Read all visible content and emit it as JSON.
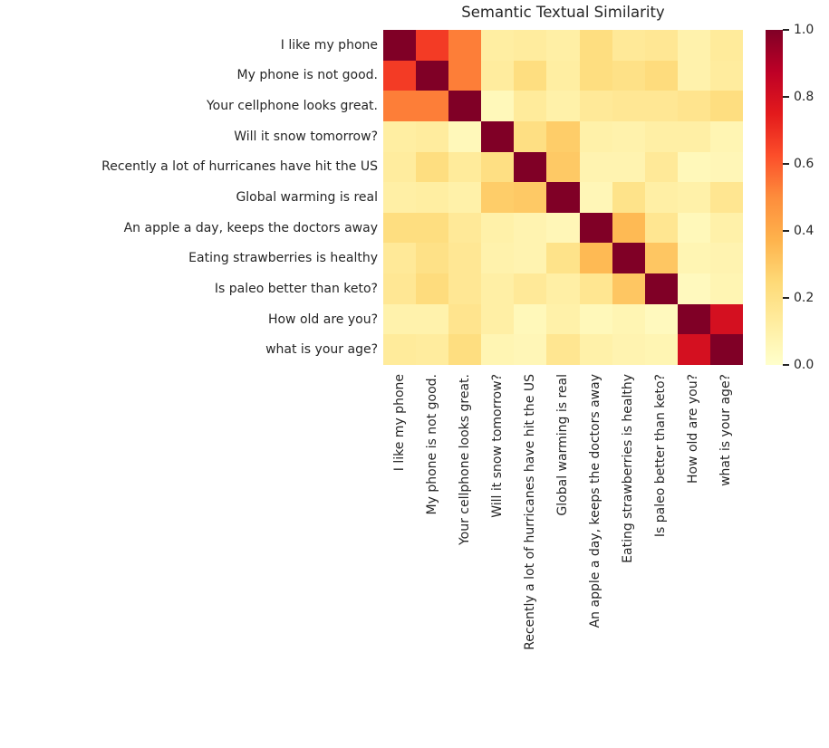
{
  "chart_data": {
    "type": "heatmap",
    "title": "Semantic Textual Similarity",
    "labels": [
      "I like my phone",
      "My phone is not good.",
      "Your cellphone looks great.",
      "Will it snow tomorrow?",
      "Recently a lot of hurricanes have hit the US",
      "Global warming is real",
      "An apple a day, keeps the doctors away",
      "Eating strawberries is healthy",
      "Is paleo better than keto?",
      "How old are you?",
      "what is your age?"
    ],
    "values": [
      [
        1.0,
        0.67,
        0.53,
        0.12,
        0.13,
        0.11,
        0.22,
        0.15,
        0.16,
        0.09,
        0.14
      ],
      [
        0.67,
        1.0,
        0.53,
        0.13,
        0.22,
        0.12,
        0.22,
        0.2,
        0.23,
        0.09,
        0.13
      ],
      [
        0.53,
        0.53,
        1.0,
        0.05,
        0.14,
        0.1,
        0.15,
        0.16,
        0.16,
        0.18,
        0.22
      ],
      [
        0.12,
        0.13,
        0.05,
        1.0,
        0.21,
        0.29,
        0.1,
        0.09,
        0.11,
        0.11,
        0.07
      ],
      [
        0.13,
        0.22,
        0.14,
        0.21,
        1.0,
        0.3,
        0.08,
        0.08,
        0.15,
        0.05,
        0.06
      ],
      [
        0.11,
        0.12,
        0.1,
        0.29,
        0.3,
        1.0,
        0.06,
        0.19,
        0.11,
        0.1,
        0.17
      ],
      [
        0.22,
        0.22,
        0.15,
        0.1,
        0.08,
        0.06,
        1.0,
        0.35,
        0.17,
        0.05,
        0.1
      ],
      [
        0.15,
        0.2,
        0.16,
        0.09,
        0.08,
        0.19,
        0.35,
        1.0,
        0.31,
        0.07,
        0.08
      ],
      [
        0.16,
        0.23,
        0.16,
        0.11,
        0.15,
        0.11,
        0.17,
        0.31,
        1.0,
        0.04,
        0.07
      ],
      [
        0.09,
        0.09,
        0.18,
        0.11,
        0.05,
        0.1,
        0.05,
        0.07,
        0.04,
        1.0,
        0.8
      ],
      [
        0.14,
        0.13,
        0.22,
        0.07,
        0.06,
        0.17,
        0.1,
        0.08,
        0.07,
        0.8,
        1.0
      ]
    ],
    "vmin": 0.0,
    "vmax": 1.0,
    "colormap": "YlOrRd",
    "colormap_stops": [
      "#ffffcc",
      "#ffeda0",
      "#fed976",
      "#feb24c",
      "#fd8d3c",
      "#fc4e2a",
      "#e31a1c",
      "#bd0026",
      "#800026"
    ],
    "colorbar_ticks": [
      "1.0",
      "0.8",
      "0.6",
      "0.4",
      "0.2",
      "0.0"
    ],
    "colorbar_position": "right",
    "grid": false,
    "text_color": "#262626"
  }
}
